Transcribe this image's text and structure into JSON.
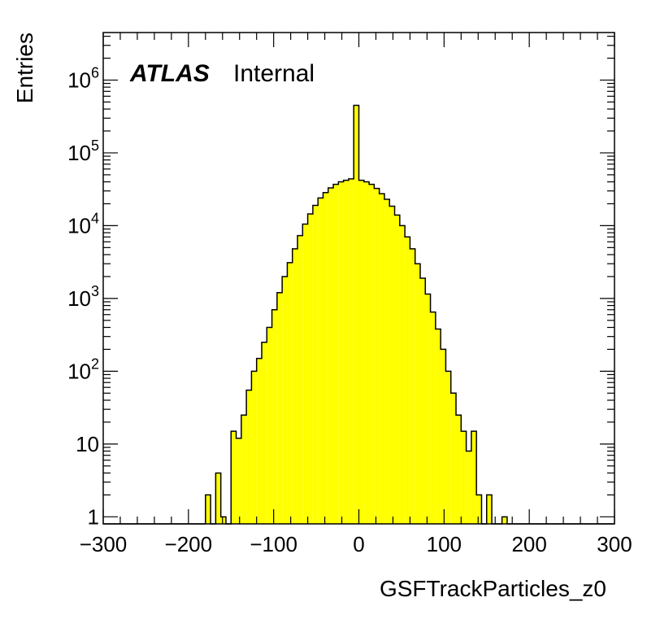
{
  "chart_data": {
    "type": "bar",
    "title": "",
    "xlabel": "GSFTrackParticles_z0",
    "ylabel": "Entries",
    "xlim": [
      -300,
      300
    ],
    "ylim": [
      0.8,
      4500000
    ],
    "yscale": "log",
    "grid": false,
    "legend": "none",
    "annotation": {
      "experiment": "ATLAS",
      "status": "Internal"
    },
    "x_ticks": [
      {
        "value": -300,
        "label": "−300"
      },
      {
        "value": -200,
        "label": "−200"
      },
      {
        "value": -100,
        "label": "−100"
      },
      {
        "value": 0,
        "label": "0"
      },
      {
        "value": 100,
        "label": "100"
      },
      {
        "value": 200,
        "label": "200"
      },
      {
        "value": 300,
        "label": "300"
      }
    ],
    "y_ticks": [
      {
        "value": 1,
        "base": "1",
        "exp": ""
      },
      {
        "value": 10,
        "base": "10",
        "exp": ""
      },
      {
        "value": 100,
        "base": "10",
        "exp": "2"
      },
      {
        "value": 1000,
        "base": "10",
        "exp": "3"
      },
      {
        "value": 10000,
        "base": "10",
        "exp": "4"
      },
      {
        "value": 100000,
        "base": "10",
        "exp": "5"
      },
      {
        "value": 1000000,
        "base": "10",
        "exp": "6"
      }
    ],
    "bin_edges_start": -300,
    "bin_width": 6,
    "fill_color": "#ffff00",
    "line_color": "#000000",
    "series": [
      {
        "values": [
          0,
          0,
          0,
          0,
          0,
          0,
          0,
          0,
          0,
          0,
          0,
          0,
          0,
          0,
          0,
          0,
          0,
          0,
          0,
          0,
          2,
          0,
          4,
          1,
          0,
          15,
          12,
          25,
          55,
          100,
          150,
          250,
          400,
          700,
          1200,
          2000,
          3100,
          4800,
          7300,
          10500,
          14500,
          19000,
          24000,
          28500,
          33000,
          37000,
          40000,
          42000,
          44000,
          450000,
          42000,
          40000,
          37000,
          32500,
          27500,
          23000,
          18500,
          14000,
          10000,
          7000,
          4800,
          3000,
          1900,
          1150,
          650,
          380,
          200,
          100,
          50,
          25,
          15,
          8,
          15,
          2,
          0,
          2,
          0,
          0,
          1,
          0,
          0,
          0,
          0,
          0,
          0,
          0,
          0,
          0,
          0,
          0,
          0,
          0,
          0,
          0,
          0,
          0,
          0,
          0,
          0,
          0
        ]
      }
    ]
  }
}
